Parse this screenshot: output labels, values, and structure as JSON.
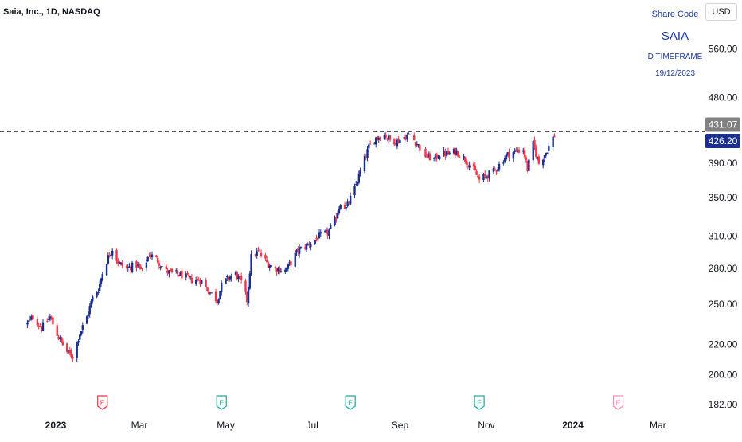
{
  "header": {
    "title": "Saia, Inc., 1D, NASDAQ",
    "currency_button": "USD"
  },
  "info_box": {
    "share_code_label": "Share Code",
    "symbol": "SAIA",
    "timeframe": "D TIMEFRAME",
    "date": "19/12/2023"
  },
  "colors": {
    "up": "#1b2f8f",
    "down": "#f23645",
    "dashed_line": "#555555",
    "last_price_bg": "#1b2f8f",
    "high_price_bg": "#808080",
    "earnings_past": "#f23645",
    "earnings_reported": "#26a69a",
    "earnings_future": "#f48fb1"
  },
  "chart_data": {
    "type": "candlestick",
    "title": "Saia, Inc., 1D, NASDAQ",
    "y_axis": {
      "ticks": [
        "560.00",
        "480.00",
        "390.00",
        "350.00",
        "310.00",
        "280.00",
        "250.00",
        "220.00",
        "200.00",
        "182.00"
      ],
      "tick_values": [
        560,
        480,
        390,
        350,
        310,
        280,
        250,
        220,
        200,
        182
      ],
      "scale": "log",
      "range": [
        179,
        640
      ]
    },
    "x_axis": {
      "ticks": [
        "2023",
        "Mar",
        "May",
        "Jul",
        "Sep",
        "Nov",
        "2024",
        "Mar"
      ],
      "tick_dates": [
        "2023-01-01",
        "2023-03-01",
        "2023-05-01",
        "2023-07-01",
        "2023-09-01",
        "2023-11-01",
        "2024-01-01",
        "2024-03-01"
      ],
      "bold_ticks": [
        "2023",
        "2024"
      ]
    },
    "price_labels": [
      {
        "value": "431.07",
        "kind": "high"
      },
      {
        "value": "426.20",
        "kind": "last"
      }
    ],
    "reference_line": 431.07,
    "earnings_markers": [
      {
        "date": "2023-02-03",
        "label": "E",
        "kind": "past"
      },
      {
        "date": "2023-04-28",
        "label": "E",
        "kind": "reported"
      },
      {
        "date": "2023-07-28",
        "label": "E",
        "kind": "reported"
      },
      {
        "date": "2023-10-27",
        "label": "E",
        "kind": "reported"
      },
      {
        "date": "2024-02-02",
        "label": "E",
        "kind": "future"
      }
    ],
    "close_path": [
      [
        "2022-12-12",
        235
      ],
      [
        "2022-12-16",
        240
      ],
      [
        "2022-12-22",
        232
      ],
      [
        "2022-12-28",
        240
      ],
      [
        "2023-01-03",
        225
      ],
      [
        "2023-01-09",
        215
      ],
      [
        "2023-01-13",
        212
      ],
      [
        "2023-01-18",
        228
      ],
      [
        "2023-01-23",
        240
      ],
      [
        "2023-01-27",
        255
      ],
      [
        "2023-01-31",
        262
      ],
      [
        "2023-02-03",
        276
      ],
      [
        "2023-02-07",
        290
      ],
      [
        "2023-02-10",
        298
      ],
      [
        "2023-02-14",
        285
      ],
      [
        "2023-02-20",
        280
      ],
      [
        "2023-02-27",
        283
      ],
      [
        "2023-03-03",
        277
      ],
      [
        "2023-03-08",
        293
      ],
      [
        "2023-03-14",
        287
      ],
      [
        "2023-03-20",
        277
      ],
      [
        "2023-03-27",
        275
      ],
      [
        "2023-03-31",
        274
      ],
      [
        "2023-04-06",
        270
      ],
      [
        "2023-04-13",
        270
      ],
      [
        "2023-04-18",
        262
      ],
      [
        "2023-04-25",
        253
      ],
      [
        "2023-04-28",
        265
      ],
      [
        "2023-05-03",
        272
      ],
      [
        "2023-05-08",
        275
      ],
      [
        "2023-05-12",
        268
      ],
      [
        "2023-05-16",
        253
      ],
      [
        "2023-05-19",
        290
      ],
      [
        "2023-05-24",
        295
      ],
      [
        "2023-05-30",
        285
      ],
      [
        "2023-06-05",
        280
      ],
      [
        "2023-06-12",
        278
      ],
      [
        "2023-06-16",
        285
      ],
      [
        "2023-06-21",
        296
      ],
      [
        "2023-06-26",
        300
      ],
      [
        "2023-06-30",
        303
      ],
      [
        "2023-07-06",
        310
      ],
      [
        "2023-07-12",
        313
      ],
      [
        "2023-07-17",
        325
      ],
      [
        "2023-07-21",
        345
      ],
      [
        "2023-07-25",
        338
      ],
      [
        "2023-07-31",
        360
      ],
      [
        "2023-08-04",
        380
      ],
      [
        "2023-08-08",
        400
      ],
      [
        "2023-08-10",
        410
      ],
      [
        "2023-08-15",
        423
      ],
      [
        "2023-08-21",
        427
      ],
      [
        "2023-08-25",
        420
      ],
      [
        "2023-08-30",
        418
      ],
      [
        "2023-09-05",
        425
      ],
      [
        "2023-09-08",
        427
      ],
      [
        "2023-09-13",
        415
      ],
      [
        "2023-09-19",
        400
      ],
      [
        "2023-09-25",
        395
      ],
      [
        "2023-09-29",
        402
      ],
      [
        "2023-10-05",
        402
      ],
      [
        "2023-10-11",
        405
      ],
      [
        "2023-10-17",
        395
      ],
      [
        "2023-10-23",
        382
      ],
      [
        "2023-10-27",
        370
      ],
      [
        "2023-11-01",
        375
      ],
      [
        "2023-11-06",
        380
      ],
      [
        "2023-11-10",
        388
      ],
      [
        "2023-11-15",
        400
      ],
      [
        "2023-11-21",
        405
      ],
      [
        "2023-11-27",
        408
      ],
      [
        "2023-11-30",
        383
      ],
      [
        "2023-12-04",
        414
      ],
      [
        "2023-12-08",
        390
      ],
      [
        "2023-12-13",
        404
      ],
      [
        "2023-12-19",
        426.2
      ]
    ],
    "grid": false,
    "legend": "none"
  }
}
